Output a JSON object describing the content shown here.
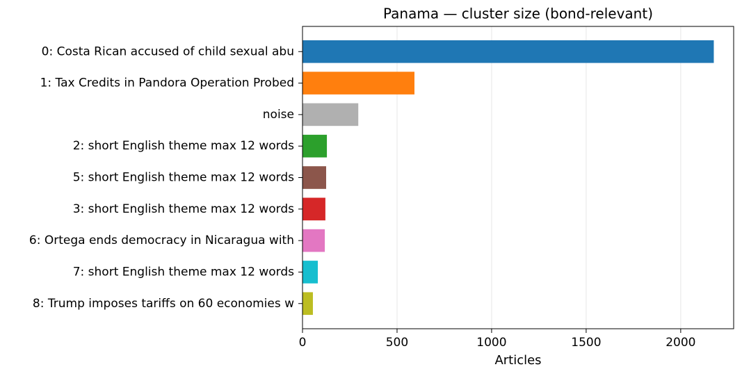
{
  "chart_data": {
    "type": "barh",
    "title": "Panama — cluster size (bond-relevant)",
    "x_label": "Articles",
    "categories": [
      "0: Costa Rican accused of child sexual abu",
      "1: Tax Credits in Pandora Operation Probed",
      "noise",
      "2: short English theme max 12 words",
      "5: short English theme max 12 words",
      "3: short English theme max 12 words",
      "6: Ortega ends democracy in Nicaragua with",
      "7: short English theme max 12 words",
      "8: Trump imposes tariffs on 60 economies w"
    ],
    "values": [
      2175,
      592,
      295,
      129,
      125,
      121,
      118,
      81,
      55
    ],
    "colors": [
      "#1f77b4",
      "#ff7f0e",
      "#b0b0b0",
      "#2ca02c",
      "#8c564b",
      "#d62728",
      "#e377c2",
      "#17becf",
      "#bcbd22"
    ],
    "xlim": [
      0,
      2280
    ],
    "xticks": [
      0,
      500,
      1000,
      1500,
      2000
    ],
    "grid": true
  }
}
